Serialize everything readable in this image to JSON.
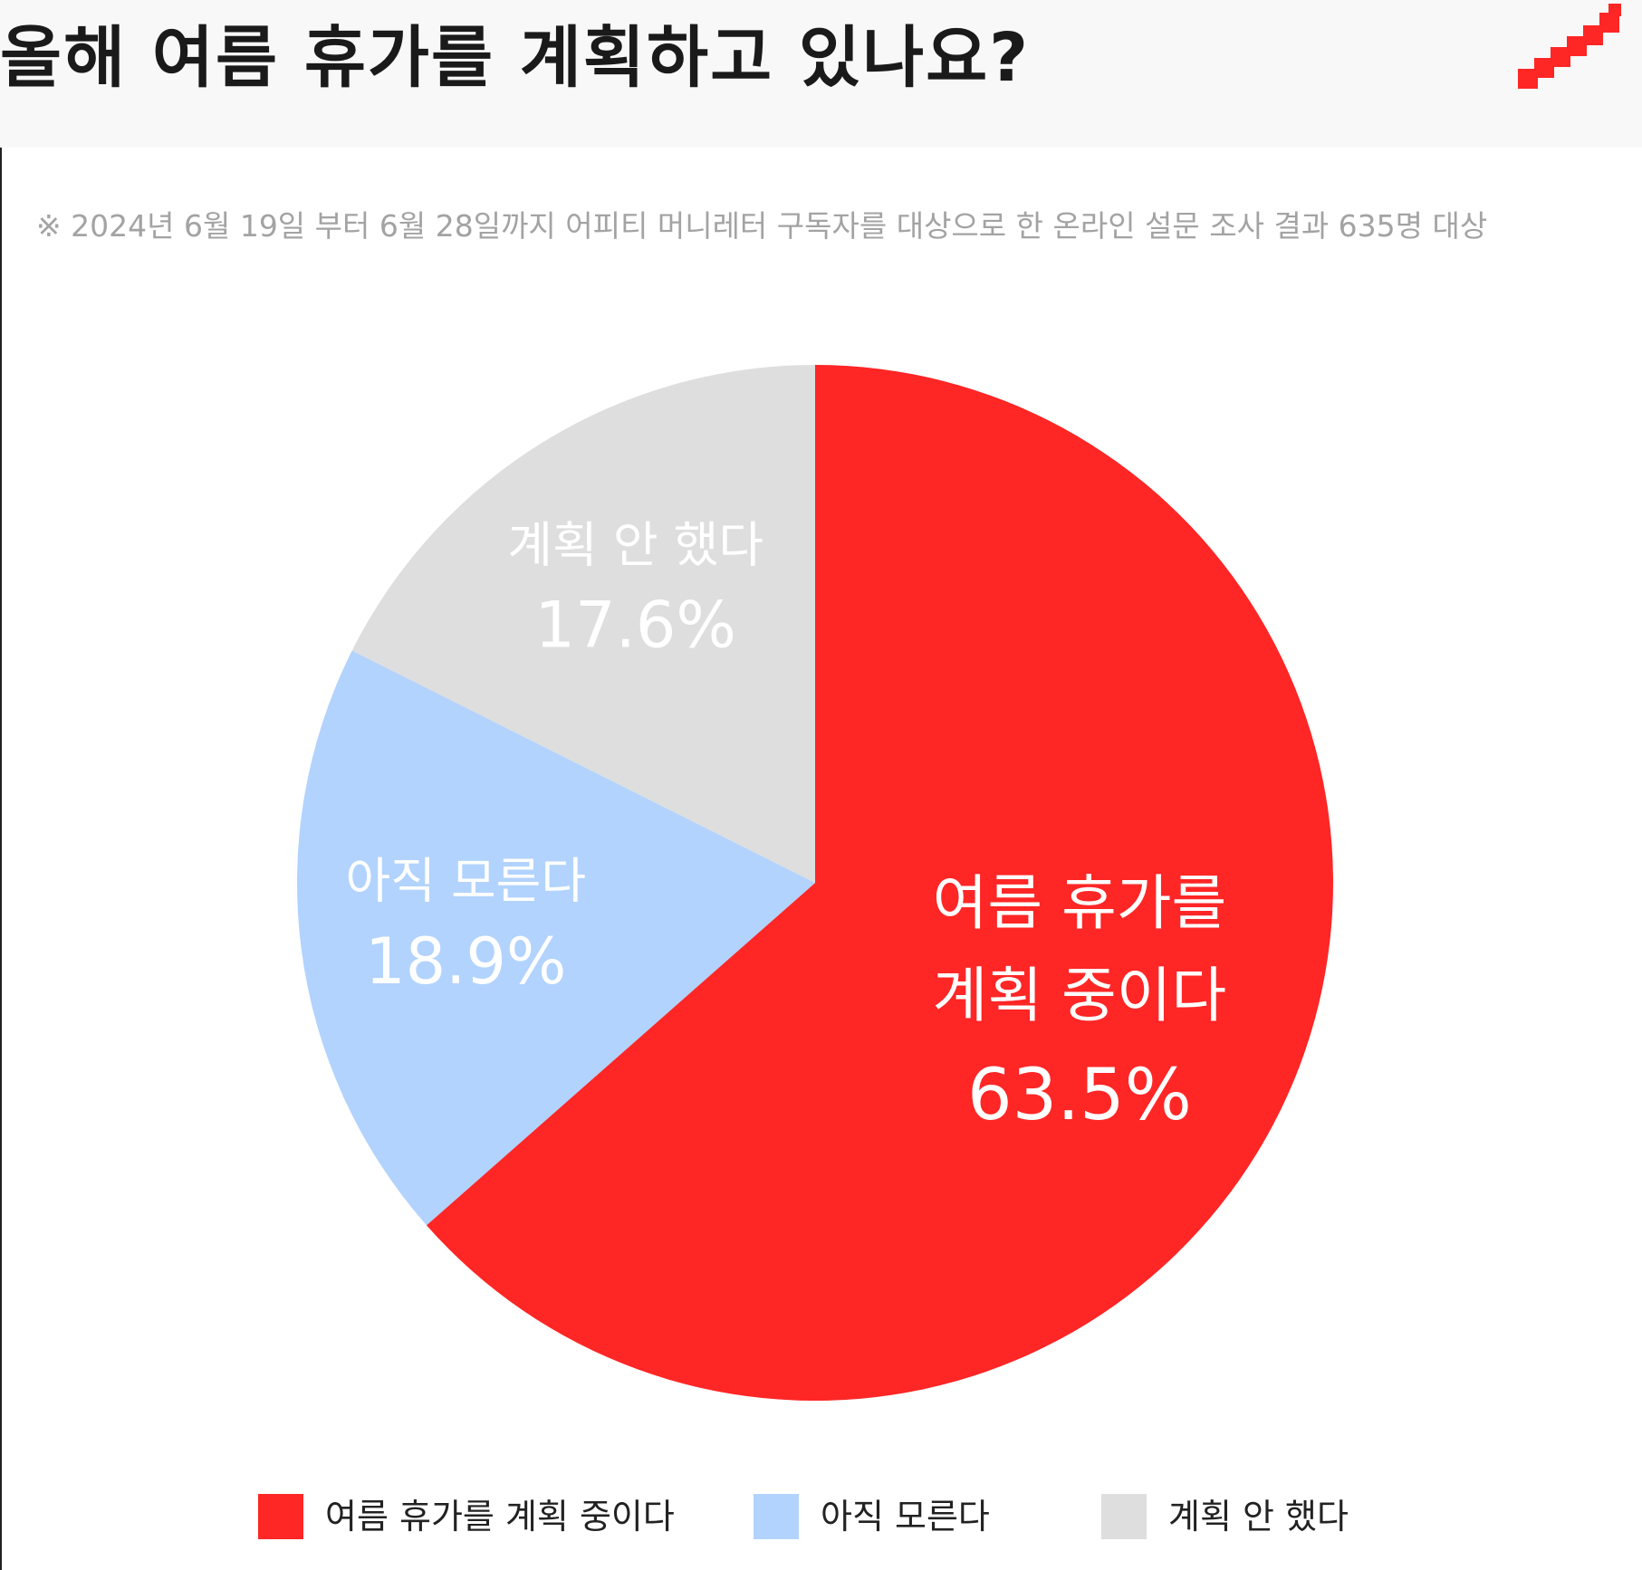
{
  "title": "올해 여름 휴가를 계획하고 있나요?",
  "logo_icon": "red-staircase-icon",
  "note": "※ 2024년 6월 19일 부터 6월 28일까지 어피티 머니레터 구독자를 대상으로 한 온라인 설문 조사 결과 635명 대상",
  "chart_data": {
    "type": "pie",
    "start_angle_deg": 0,
    "direction": "clockwise",
    "legend_position": "bottom",
    "slices": [
      {
        "label": "여름 휴가를 계획 중이다",
        "label_lines": [
          "여름 휴가를",
          "계획 중이다"
        ],
        "value": 63.5,
        "value_label": "63.5%",
        "color": "#ff2626"
      },
      {
        "label": "아직 모른다",
        "label_lines": [
          "아직 모른다"
        ],
        "value": 18.9,
        "value_label": "18.9%",
        "color": "#b2d3fd"
      },
      {
        "label": "계획 안 했다",
        "label_lines": [
          "계획 안 했다"
        ],
        "value": 17.6,
        "value_label": "17.6%",
        "color": "#dedede"
      }
    ]
  },
  "legend": [
    {
      "label": "여름 휴가를 계획 중이다",
      "color": "#ff2626"
    },
    {
      "label": "아직 모른다",
      "color": "#b2d3fd"
    },
    {
      "label": "계획 안 했다",
      "color": "#dedede"
    }
  ]
}
